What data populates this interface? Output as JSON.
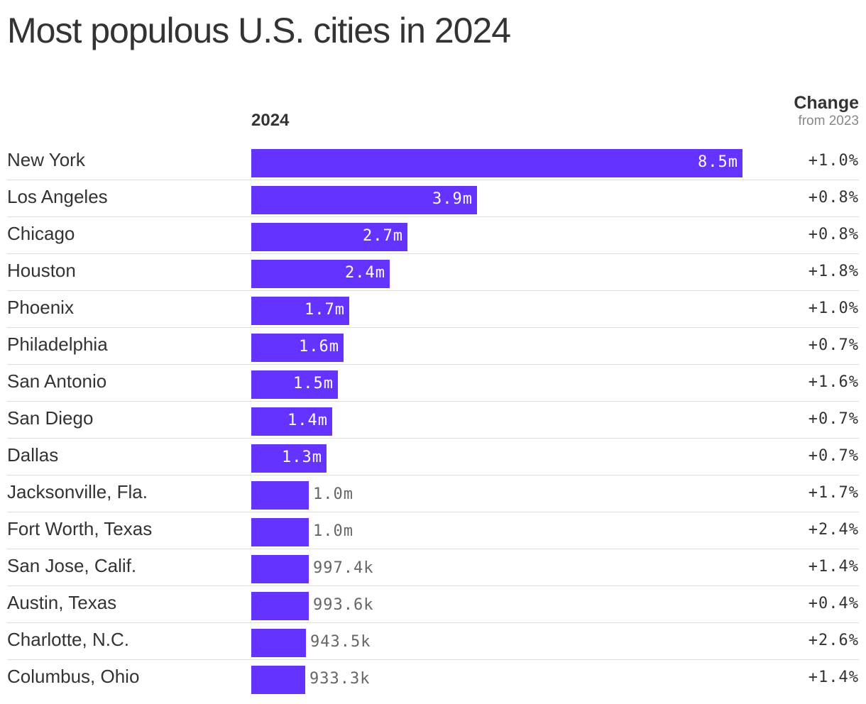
{
  "title": "Most populous U.S. cities in 2024",
  "columns": {
    "bars": "2024",
    "change": "Change",
    "change_sub": "from 2023"
  },
  "colors": {
    "bar": "#6533ff",
    "label_inside": "#ffffff",
    "label_outside": "#666666",
    "divider": "#dddddd"
  },
  "chart_data": {
    "type": "bar",
    "orientation": "horizontal",
    "title": "Most populous U.S. cities in 2024",
    "xlabel": "",
    "ylabel": "",
    "value_unit": "people",
    "categories": [
      "New York",
      "Los Angeles",
      "Chicago",
      "Houston",
      "Phoenix",
      "Philadelphia",
      "San Antonio",
      "San Diego",
      "Dallas",
      "Jacksonville, Fla.",
      "Fort Worth, Texas",
      "San Jose, Calif.",
      "Austin, Texas",
      "Charlotte, N.C.",
      "Columbus, Ohio"
    ],
    "series": [
      {
        "name": "2024",
        "values": [
          8500000,
          3900000,
          2700000,
          2400000,
          1700000,
          1600000,
          1500000,
          1400000,
          1300000,
          1000000,
          1000000,
          997400,
          993600,
          943500,
          933300
        ],
        "labels": [
          "8.5m",
          "3.9m",
          "2.7m",
          "2.4m",
          "1.7m",
          "1.6m",
          "1.5m",
          "1.4m",
          "1.3m",
          "1.0m",
          "1.0m",
          "997.4k",
          "993.6k",
          "943.5k",
          "933.3k"
        ]
      },
      {
        "name": "Change",
        "values": [
          1.0,
          0.8,
          0.8,
          1.8,
          1.0,
          0.7,
          1.6,
          0.7,
          0.7,
          1.7,
          2.4,
          1.4,
          0.4,
          2.6,
          1.4
        ],
        "labels": [
          "+1.0%",
          "+0.8%",
          "+0.8%",
          "+1.8%",
          "+1.0%",
          "+0.7%",
          "+1.6%",
          "+0.7%",
          "+0.7%",
          "+1.7%",
          "+2.4%",
          "+1.4%",
          "+0.4%",
          "+2.6%",
          "+1.4%"
        ]
      }
    ],
    "xlim": [
      0,
      8500000
    ],
    "grid": false,
    "legend": "none"
  }
}
